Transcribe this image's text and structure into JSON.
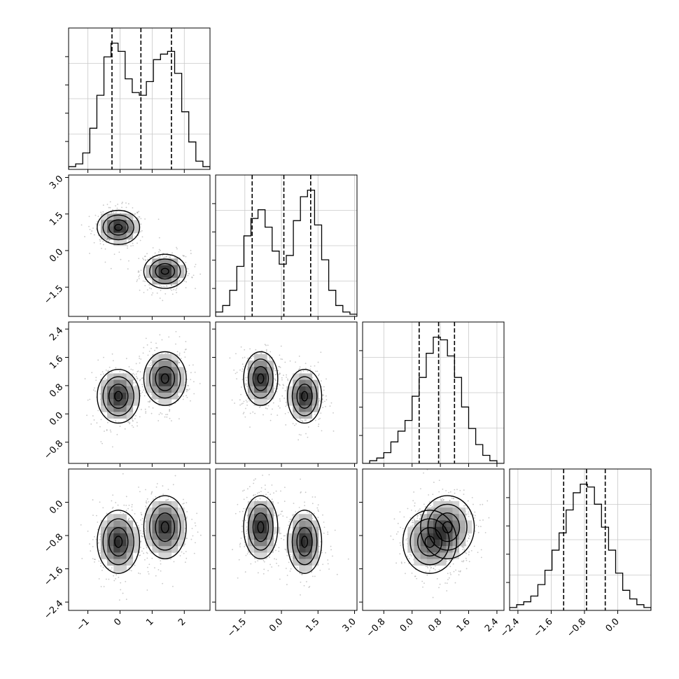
{
  "chart_data": {
    "type": "corner",
    "dimensions": [
      {
        "ticks": [
          -1,
          0,
          1,
          2
        ],
        "tick_labels": [
          "−1",
          "0",
          "1",
          "2"
        ],
        "range": [
          -1.6,
          2.8
        ]
      },
      {
        "ticks": [
          -1.5,
          0.0,
          1.5,
          3.0
        ],
        "tick_labels": [
          "−1.5",
          "0.0",
          "1.5",
          "3.0"
        ],
        "range": [
          -2.7,
          3.1
        ]
      },
      {
        "ticks": [
          -0.8,
          0.0,
          0.8,
          1.6,
          2.4
        ],
        "tick_labels": [
          "−0.8",
          "0.0",
          "0.8",
          "1.6",
          "2.4"
        ],
        "range": [
          -1.4,
          2.6
        ]
      },
      {
        "ticks": [
          -2.4,
          -1.6,
          -0.8,
          0.0
        ],
        "tick_labels": [
          "−2.4",
          "−1.6",
          "−0.8",
          "0.0"
        ],
        "range": [
          -2.6,
          0.8
        ]
      }
    ],
    "quantiles": [
      [
        -0.25,
        0.65,
        1.6
      ],
      [
        -1.2,
        0.1,
        1.2
      ],
      [
        0.2,
        0.75,
        1.2
      ],
      [
        -1.3,
        -0.75,
        -0.3
      ]
    ],
    "histograms": [
      {
        "bins": [
          -1.6,
          -1.38,
          -1.16,
          -0.94,
          -0.72,
          -0.5,
          -0.28,
          -0.06,
          0.16,
          0.38,
          0.6,
          0.82,
          1.04,
          1.26,
          1.48,
          1.7,
          1.92,
          2.14,
          2.36,
          2.58,
          2.8
        ],
        "counts": [
          1,
          2,
          6,
          15,
          27,
          41,
          46,
          43,
          33,
          28,
          27,
          32,
          40,
          42,
          43,
          35,
          21,
          10,
          3,
          1
        ]
      },
      {
        "bins": [
          -2.7,
          -2.41,
          -2.12,
          -1.83,
          -1.54,
          -1.25,
          -0.96,
          -0.67,
          -0.38,
          -0.09,
          0.2,
          0.49,
          0.78,
          1.07,
          1.36,
          1.65,
          1.94,
          2.23,
          2.52,
          2.81,
          3.1
        ],
        "counts": [
          2,
          5,
          12,
          23,
          37,
          45,
          49,
          41,
          30,
          24,
          28,
          44,
          55,
          58,
          42,
          26,
          12,
          5,
          2,
          1
        ]
      },
      {
        "bins": [
          -1.4,
          -1.2,
          -1.0,
          -0.8,
          -0.6,
          -0.4,
          -0.2,
          0.0,
          0.2,
          0.4,
          0.6,
          0.8,
          1.0,
          1.2,
          1.4,
          1.6,
          1.8,
          2.0,
          2.2,
          2.4,
          2.6
        ],
        "counts": [
          0,
          1,
          2,
          4,
          8,
          12,
          16,
          25,
          32,
          41,
          47,
          46,
          40,
          32,
          21,
          13,
          7,
          3,
          1,
          0
        ]
      },
      {
        "bins": [
          -2.6,
          -2.43,
          -2.26,
          -2.09,
          -1.92,
          -1.75,
          -1.58,
          -1.41,
          -1.24,
          -1.07,
          -0.9,
          -0.73,
          -0.56,
          -0.39,
          -0.22,
          -0.05,
          0.12,
          0.29,
          0.46,
          0.63,
          0.8
        ],
        "counts": [
          1,
          2,
          3,
          5,
          9,
          14,
          21,
          27,
          35,
          41,
          44,
          43,
          37,
          29,
          21,
          13,
          7,
          4,
          2,
          1
        ]
      }
    ],
    "components": [
      {
        "mean": [
          -0.05,
          0.95,
          0.5,
          -0.95
        ],
        "sd": [
          0.33,
          0.35,
          0.38,
          0.38
        ]
      },
      {
        "mean": [
          1.4,
          -0.85,
          1.0,
          -0.6
        ],
        "sd": [
          0.33,
          0.35,
          0.38,
          0.38
        ]
      }
    ]
  }
}
